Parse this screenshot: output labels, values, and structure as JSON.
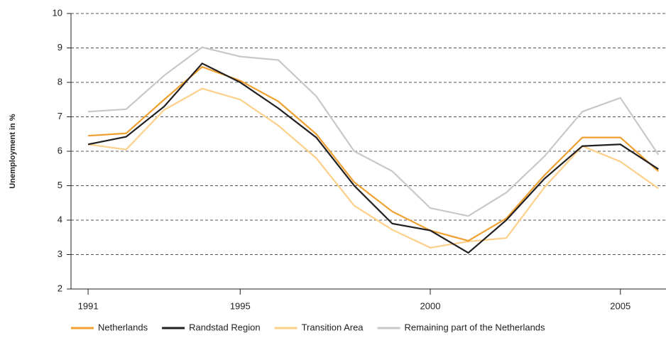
{
  "chart_data": {
    "type": "line",
    "ylabel": "Unemployment in %",
    "x": [
      1991,
      1992,
      1993,
      1994,
      1995,
      1996,
      1997,
      1998,
      1999,
      2000,
      2001,
      2002,
      2003,
      2004,
      2005,
      2006
    ],
    "series": [
      {
        "name": "Netherlands",
        "color": "#f0a030",
        "values": [
          6.45,
          6.52,
          7.5,
          8.45,
          8.05,
          7.45,
          6.5,
          5.1,
          4.25,
          3.7,
          3.4,
          4.05,
          5.3,
          6.4,
          6.4,
          5.42
        ]
      },
      {
        "name": "Randstad Region",
        "color": "#231f20",
        "values": [
          6.2,
          6.42,
          7.3,
          8.55,
          8.0,
          7.25,
          6.4,
          5.0,
          3.9,
          3.7,
          3.05,
          4.0,
          5.2,
          6.15,
          6.2,
          5.48
        ]
      },
      {
        "name": "Transition Area",
        "color": "#fdd08a",
        "values": [
          6.2,
          6.05,
          7.2,
          7.82,
          7.5,
          6.75,
          5.8,
          4.42,
          3.72,
          3.2,
          3.38,
          3.48,
          4.95,
          6.15,
          5.7,
          4.92
        ]
      },
      {
        "name": "Remaining part of the Netherlands",
        "color": "#c8c8c8",
        "values": [
          7.15,
          7.22,
          8.2,
          9.02,
          8.75,
          8.65,
          7.6,
          6.0,
          5.42,
          4.35,
          4.12,
          4.8,
          5.85,
          7.15,
          7.55,
          5.9
        ]
      }
    ],
    "xlim": [
      1990.55,
      2006.2
    ],
    "xticks": [
      1991,
      1995,
      2000,
      2005
    ],
    "ylim": [
      2,
      10
    ],
    "yticks": [
      2,
      3,
      4,
      5,
      6,
      7,
      8,
      9,
      10
    ],
    "grid": true
  }
}
